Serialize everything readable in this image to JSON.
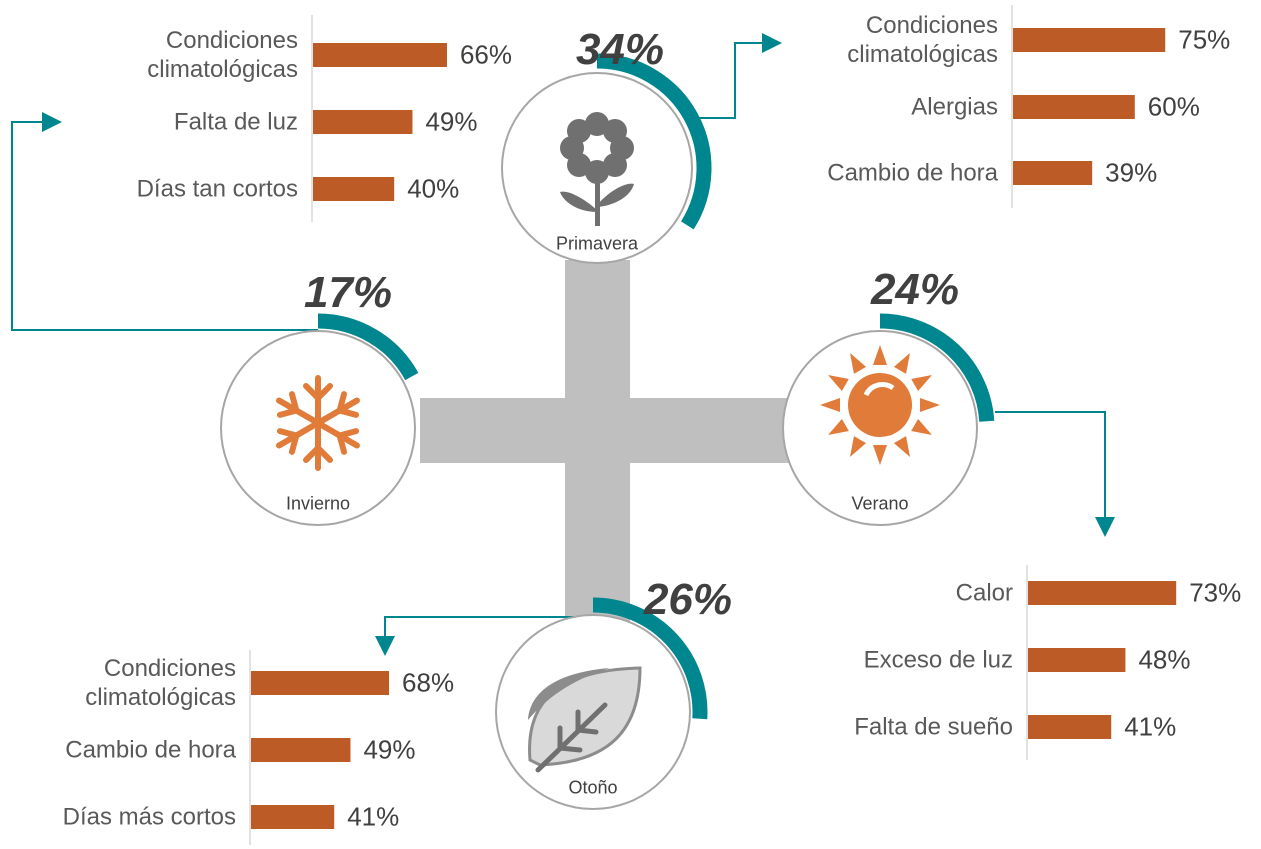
{
  "chart_data": [
    {
      "type": "ring",
      "categories": [
        "Primavera",
        "Invierno",
        "Verano",
        "Otoño"
      ],
      "values": [
        34,
        17,
        24,
        26
      ],
      "value_labels": [
        "34%",
        "17%",
        "24%",
        "26%"
      ],
      "color": "#00868f"
    },
    {
      "type": "bar",
      "categories": [
        "Condiciones climatológicas",
        "Alergias",
        "Cambio de hora"
      ],
      "values": [
        75,
        60,
        39
      ],
      "value_labels": [
        "75%",
        "60%",
        "39%"
      ],
      "color": "#bd5b27"
    },
    {
      "type": "bar",
      "categories": [
        "Condiciones climatológicas",
        "Falta de luz",
        "Días tan cortos"
      ],
      "values": [
        66,
        49,
        40
      ],
      "value_labels": [
        "66%",
        "49%",
        "40%"
      ],
      "color": "#bd5b27"
    },
    {
      "type": "bar",
      "categories": [
        "Calor",
        "Exceso de luz",
        "Falta de sueño"
      ],
      "values": [
        73,
        48,
        41
      ],
      "value_labels": [
        "73%",
        "48%",
        "41%"
      ],
      "color": "#bd5b27"
    },
    {
      "type": "bar",
      "categories": [
        "Condiciones climatológicas",
        "Cambio de hora",
        "Días más cortos"
      ],
      "values": [
        68,
        49,
        41
      ],
      "value_labels": [
        "68%",
        "49%",
        "41%"
      ],
      "color": "#bd5b27"
    }
  ]
}
